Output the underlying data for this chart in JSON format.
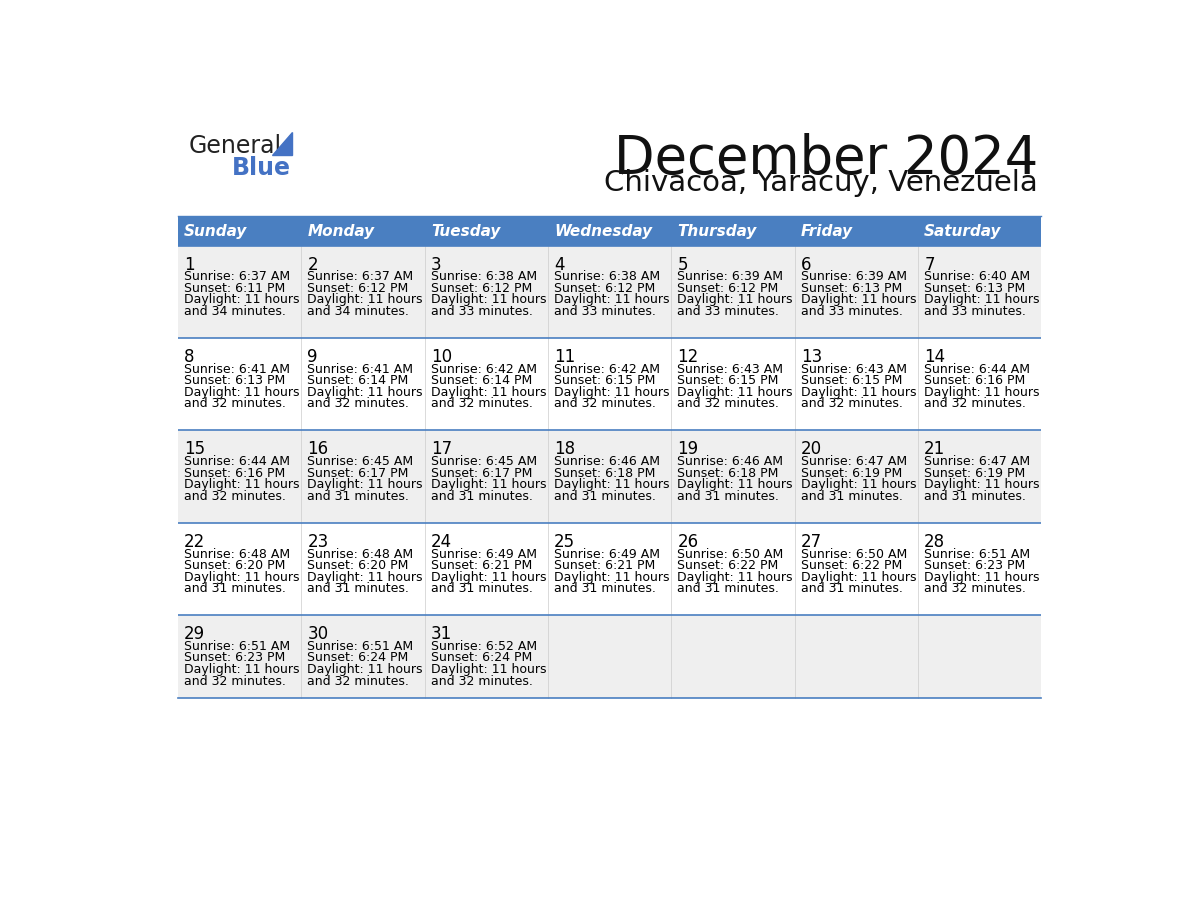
{
  "title": "December 2024",
  "subtitle": "Chivacoa, Yaracuy, Venezuela",
  "header_bg_color": "#4A7FC1",
  "header_text_color": "#FFFFFF",
  "cell_bg_white": "#FFFFFF",
  "cell_bg_gray": "#EFEFEF",
  "border_color": "#4A7FC1",
  "text_color": "#000000",
  "days_of_week": [
    "Sunday",
    "Monday",
    "Tuesday",
    "Wednesday",
    "Thursday",
    "Friday",
    "Saturday"
  ],
  "week_bg_pattern": [
    1,
    0,
    1,
    0,
    1
  ],
  "weeks": [
    [
      {
        "day": "1",
        "sunrise": "6:37 AM",
        "sunset": "6:11 PM",
        "daylight_line1": "Daylight: 11 hours",
        "daylight_line2": "and 34 minutes."
      },
      {
        "day": "2",
        "sunrise": "6:37 AM",
        "sunset": "6:12 PM",
        "daylight_line1": "Daylight: 11 hours",
        "daylight_line2": "and 34 minutes."
      },
      {
        "day": "3",
        "sunrise": "6:38 AM",
        "sunset": "6:12 PM",
        "daylight_line1": "Daylight: 11 hours",
        "daylight_line2": "and 33 minutes."
      },
      {
        "day": "4",
        "sunrise": "6:38 AM",
        "sunset": "6:12 PM",
        "daylight_line1": "Daylight: 11 hours",
        "daylight_line2": "and 33 minutes."
      },
      {
        "day": "5",
        "sunrise": "6:39 AM",
        "sunset": "6:12 PM",
        "daylight_line1": "Daylight: 11 hours",
        "daylight_line2": "and 33 minutes."
      },
      {
        "day": "6",
        "sunrise": "6:39 AM",
        "sunset": "6:13 PM",
        "daylight_line1": "Daylight: 11 hours",
        "daylight_line2": "and 33 minutes."
      },
      {
        "day": "7",
        "sunrise": "6:40 AM",
        "sunset": "6:13 PM",
        "daylight_line1": "Daylight: 11 hours",
        "daylight_line2": "and 33 minutes."
      }
    ],
    [
      {
        "day": "8",
        "sunrise": "6:41 AM",
        "sunset": "6:13 PM",
        "daylight_line1": "Daylight: 11 hours",
        "daylight_line2": "and 32 minutes."
      },
      {
        "day": "9",
        "sunrise": "6:41 AM",
        "sunset": "6:14 PM",
        "daylight_line1": "Daylight: 11 hours",
        "daylight_line2": "and 32 minutes."
      },
      {
        "day": "10",
        "sunrise": "6:42 AM",
        "sunset": "6:14 PM",
        "daylight_line1": "Daylight: 11 hours",
        "daylight_line2": "and 32 minutes."
      },
      {
        "day": "11",
        "sunrise": "6:42 AM",
        "sunset": "6:15 PM",
        "daylight_line1": "Daylight: 11 hours",
        "daylight_line2": "and 32 minutes."
      },
      {
        "day": "12",
        "sunrise": "6:43 AM",
        "sunset": "6:15 PM",
        "daylight_line1": "Daylight: 11 hours",
        "daylight_line2": "and 32 minutes."
      },
      {
        "day": "13",
        "sunrise": "6:43 AM",
        "sunset": "6:15 PM",
        "daylight_line1": "Daylight: 11 hours",
        "daylight_line2": "and 32 minutes."
      },
      {
        "day": "14",
        "sunrise": "6:44 AM",
        "sunset": "6:16 PM",
        "daylight_line1": "Daylight: 11 hours",
        "daylight_line2": "and 32 minutes."
      }
    ],
    [
      {
        "day": "15",
        "sunrise": "6:44 AM",
        "sunset": "6:16 PM",
        "daylight_line1": "Daylight: 11 hours",
        "daylight_line2": "and 32 minutes."
      },
      {
        "day": "16",
        "sunrise": "6:45 AM",
        "sunset": "6:17 PM",
        "daylight_line1": "Daylight: 11 hours",
        "daylight_line2": "and 31 minutes."
      },
      {
        "day": "17",
        "sunrise": "6:45 AM",
        "sunset": "6:17 PM",
        "daylight_line1": "Daylight: 11 hours",
        "daylight_line2": "and 31 minutes."
      },
      {
        "day": "18",
        "sunrise": "6:46 AM",
        "sunset": "6:18 PM",
        "daylight_line1": "Daylight: 11 hours",
        "daylight_line2": "and 31 minutes."
      },
      {
        "day": "19",
        "sunrise": "6:46 AM",
        "sunset": "6:18 PM",
        "daylight_line1": "Daylight: 11 hours",
        "daylight_line2": "and 31 minutes."
      },
      {
        "day": "20",
        "sunrise": "6:47 AM",
        "sunset": "6:19 PM",
        "daylight_line1": "Daylight: 11 hours",
        "daylight_line2": "and 31 minutes."
      },
      {
        "day": "21",
        "sunrise": "6:47 AM",
        "sunset": "6:19 PM",
        "daylight_line1": "Daylight: 11 hours",
        "daylight_line2": "and 31 minutes."
      }
    ],
    [
      {
        "day": "22",
        "sunrise": "6:48 AM",
        "sunset": "6:20 PM",
        "daylight_line1": "Daylight: 11 hours",
        "daylight_line2": "and 31 minutes."
      },
      {
        "day": "23",
        "sunrise": "6:48 AM",
        "sunset": "6:20 PM",
        "daylight_line1": "Daylight: 11 hours",
        "daylight_line2": "and 31 minutes."
      },
      {
        "day": "24",
        "sunrise": "6:49 AM",
        "sunset": "6:21 PM",
        "daylight_line1": "Daylight: 11 hours",
        "daylight_line2": "and 31 minutes."
      },
      {
        "day": "25",
        "sunrise": "6:49 AM",
        "sunset": "6:21 PM",
        "daylight_line1": "Daylight: 11 hours",
        "daylight_line2": "and 31 minutes."
      },
      {
        "day": "26",
        "sunrise": "6:50 AM",
        "sunset": "6:22 PM",
        "daylight_line1": "Daylight: 11 hours",
        "daylight_line2": "and 31 minutes."
      },
      {
        "day": "27",
        "sunrise": "6:50 AM",
        "sunset": "6:22 PM",
        "daylight_line1": "Daylight: 11 hours",
        "daylight_line2": "and 31 minutes."
      },
      {
        "day": "28",
        "sunrise": "6:51 AM",
        "sunset": "6:23 PM",
        "daylight_line1": "Daylight: 11 hours",
        "daylight_line2": "and 32 minutes."
      }
    ],
    [
      {
        "day": "29",
        "sunrise": "6:51 AM",
        "sunset": "6:23 PM",
        "daylight_line1": "Daylight: 11 hours",
        "daylight_line2": "and 32 minutes."
      },
      {
        "day": "30",
        "sunrise": "6:51 AM",
        "sunset": "6:24 PM",
        "daylight_line1": "Daylight: 11 hours",
        "daylight_line2": "and 32 minutes."
      },
      {
        "day": "31",
        "sunrise": "6:52 AM",
        "sunset": "6:24 PM",
        "daylight_line1": "Daylight: 11 hours",
        "daylight_line2": "and 32 minutes."
      },
      null,
      null,
      null,
      null
    ]
  ],
  "logo_general_color": "#1a1a1a",
  "logo_blue_color": "#4472C4",
  "logo_triangle_color": "#4472C4"
}
